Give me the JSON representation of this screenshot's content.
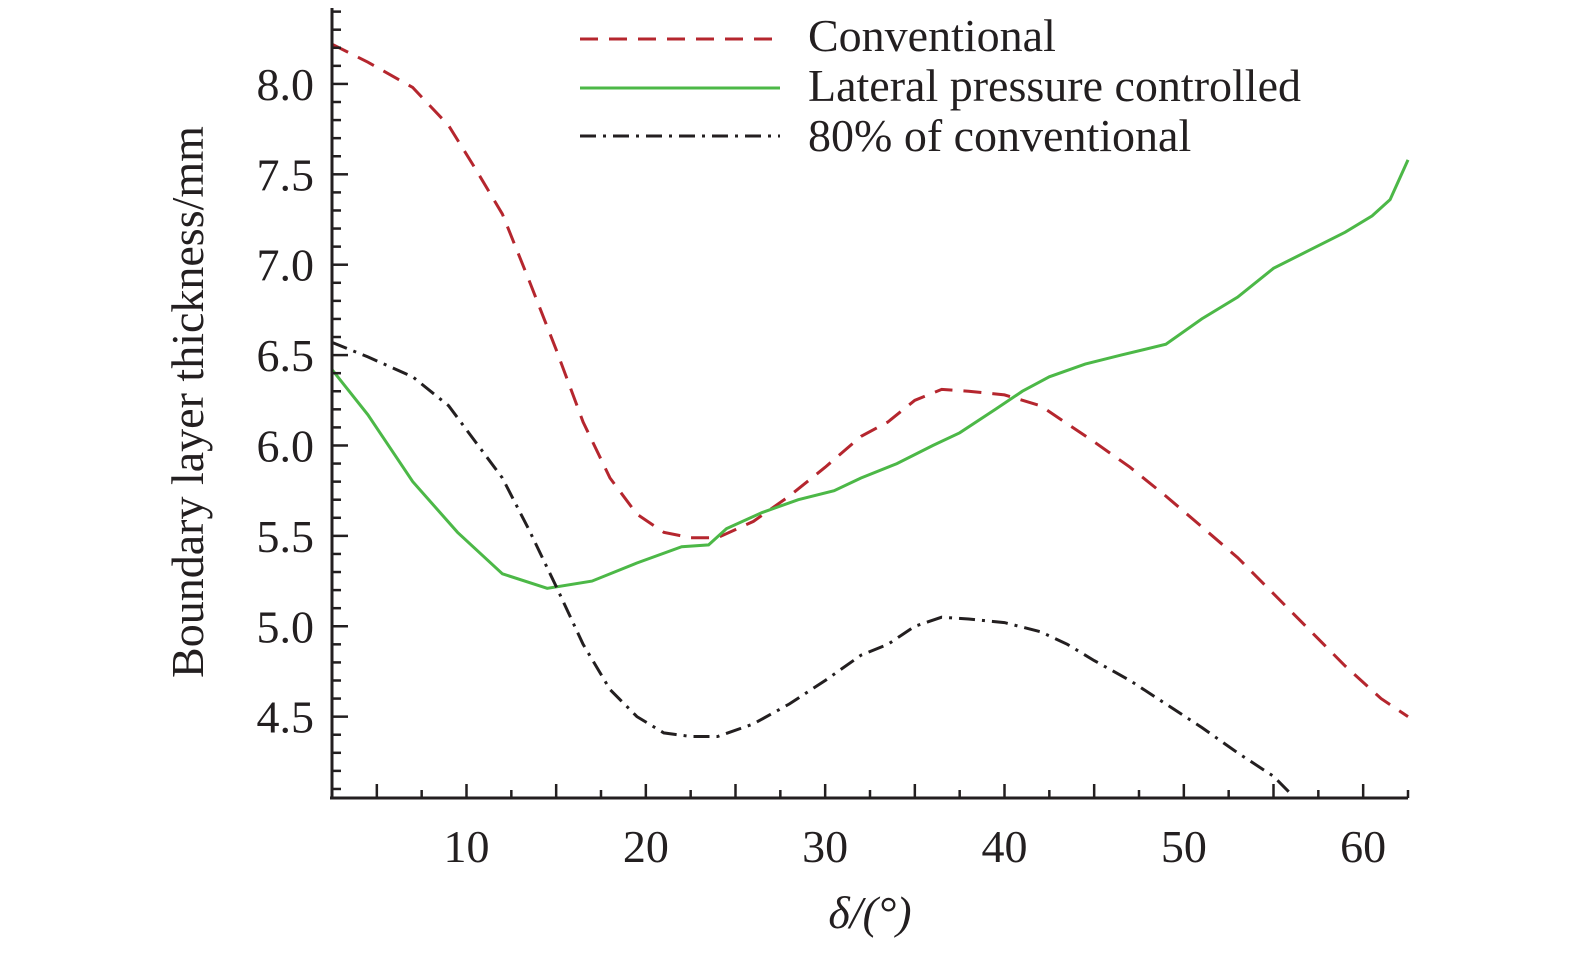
{
  "chart_data": {
    "type": "line",
    "title": "",
    "xlabel": "δ/(°)",
    "ylabel": "Boundary layer thickness/mm",
    "xlim": [
      2.5,
      62.5
    ],
    "ylim": [
      4.05,
      8.42
    ],
    "xticks": [
      10,
      20,
      30,
      40,
      50,
      60
    ],
    "xtick_labels": [
      "10",
      "20",
      "30",
      "40",
      "50",
      "60"
    ],
    "yticks": [
      4.5,
      5.0,
      5.5,
      6.0,
      6.5,
      7.0,
      7.5,
      8.0
    ],
    "ytick_labels": [
      "4.5",
      "5.0",
      "5.5",
      "6.0",
      "6.5",
      "7.0",
      "7.5",
      "8.0"
    ],
    "grid": false,
    "legend_position": "top-right",
    "series": [
      {
        "name": "Conventional",
        "style": "dashed",
        "color": "#b5262e",
        "x": [
          2.5,
          4.5,
          7.0,
          9.0,
          10.5,
          12.0,
          13.5,
          15.0,
          16.5,
          18.0,
          19.5,
          21.0,
          22.5,
          24.0,
          26.0,
          28.0,
          30.0,
          32.0,
          33.5,
          35.0,
          36.5,
          38.0,
          40.0,
          42.0,
          43.5,
          45.0,
          47.0,
          49.0,
          51.0,
          53.0,
          55.0,
          57.0,
          59.0,
          61.0,
          62.5
        ],
        "y": [
          8.22,
          8.12,
          7.98,
          7.77,
          7.53,
          7.28,
          6.91,
          6.53,
          6.13,
          5.82,
          5.62,
          5.52,
          5.49,
          5.49,
          5.58,
          5.72,
          5.88,
          6.05,
          6.13,
          6.25,
          6.31,
          6.3,
          6.28,
          6.22,
          6.12,
          6.02,
          5.88,
          5.72,
          5.55,
          5.38,
          5.18,
          4.98,
          4.78,
          4.6,
          4.5
        ]
      },
      {
        "name": "Lateral pressure controlled",
        "style": "solid",
        "color": "#4cb847",
        "x": [
          2.5,
          4.5,
          7.0,
          9.5,
          12.0,
          14.5,
          17.0,
          19.5,
          22.0,
          23.5,
          24.5,
          26.5,
          28.5,
          30.5,
          32.0,
          34.0,
          36.0,
          37.5,
          39.5,
          41.0,
          42.5,
          44.5,
          46.5,
          49.0,
          51.0,
          53.0,
          55.0,
          57.0,
          59.0,
          60.5,
          61.5,
          62.5
        ],
        "y": [
          6.42,
          6.17,
          5.8,
          5.52,
          5.29,
          5.21,
          5.25,
          5.35,
          5.44,
          5.45,
          5.54,
          5.63,
          5.7,
          5.75,
          5.82,
          5.9,
          6.0,
          6.07,
          6.2,
          6.3,
          6.38,
          6.45,
          6.5,
          6.56,
          6.7,
          6.82,
          6.98,
          7.08,
          7.18,
          7.27,
          7.36,
          7.58
        ]
      },
      {
        "name": "80% of conventional",
        "style": "dashdot",
        "color": "#231f20",
        "x": [
          2.5,
          4.5,
          7.0,
          9.0,
          10.5,
          12.0,
          13.5,
          15.0,
          16.5,
          18.0,
          19.5,
          21.0,
          22.5,
          24.0,
          26.0,
          28.0,
          30.0,
          32.0,
          33.5,
          35.0,
          36.5,
          38.0,
          40.0,
          42.0,
          43.5,
          45.0,
          47.0,
          49.0,
          51.0,
          53.0,
          55.0,
          56.0
        ],
        "y": [
          6.57,
          6.49,
          6.38,
          6.22,
          6.02,
          5.82,
          5.53,
          5.22,
          4.9,
          4.65,
          4.5,
          4.41,
          4.39,
          4.39,
          4.46,
          4.57,
          4.7,
          4.84,
          4.9,
          5.0,
          5.05,
          5.04,
          5.02,
          4.97,
          4.9,
          4.81,
          4.7,
          4.57,
          4.44,
          4.3,
          4.17,
          4.07
        ]
      }
    ]
  }
}
